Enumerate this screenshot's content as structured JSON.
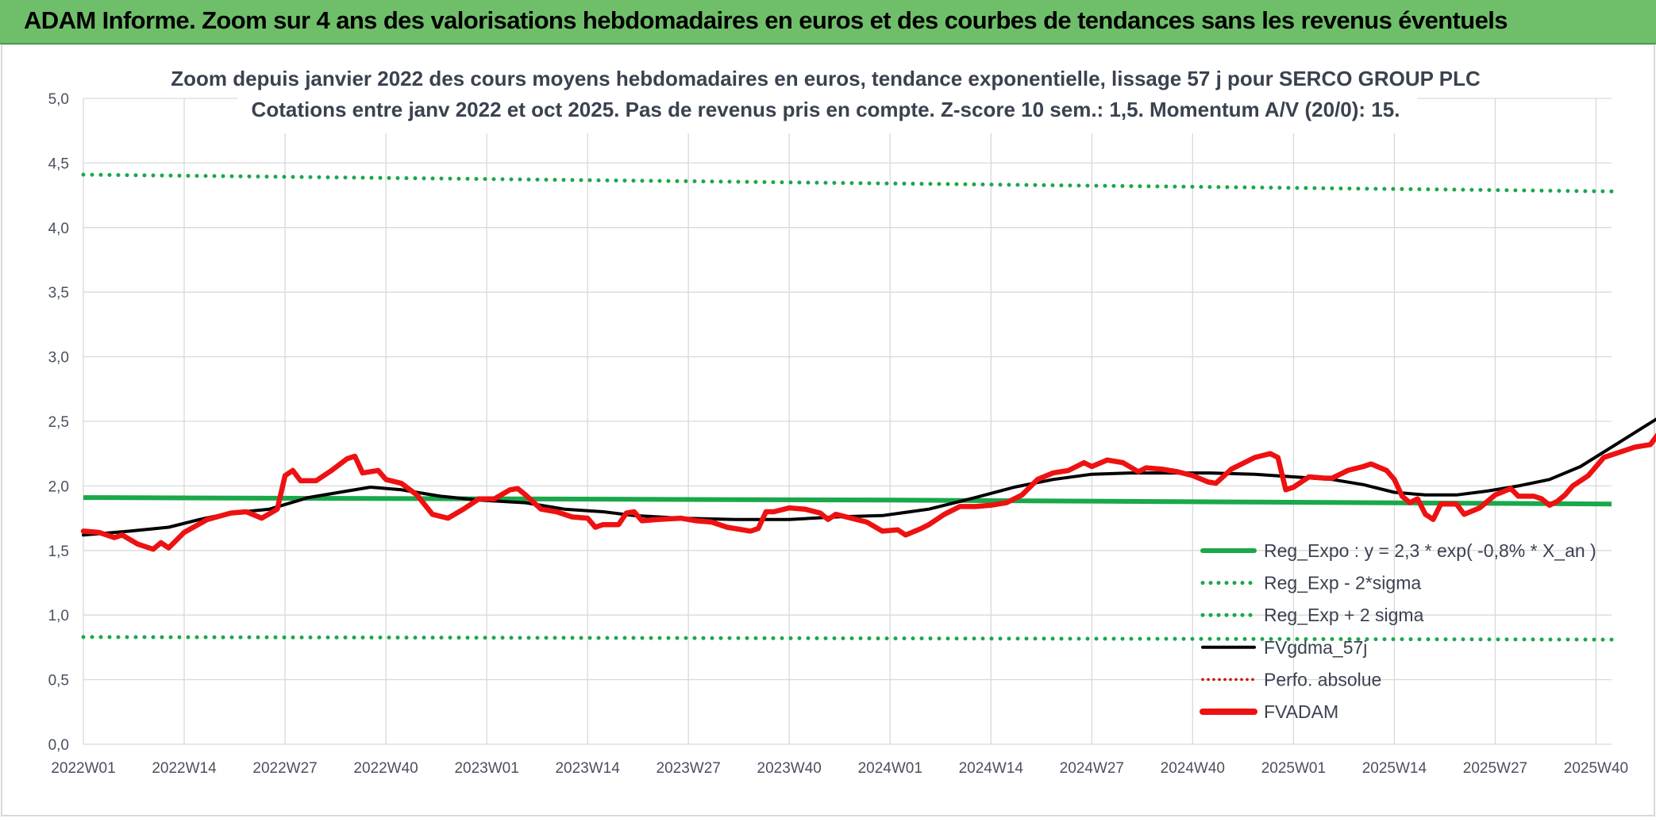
{
  "header": {
    "title": "ADAM Informe. Zoom sur 4 ans des valorisations hebdomadaires en euros et des courbes de tendances sans les revenus éventuels"
  },
  "colors": {
    "header_bg": "#6fbf6a",
    "reg_green": "#1aa84a",
    "fvgdma_black": "#000000",
    "fvadam_red": "#ee1111",
    "perfo_red": "#cc0000",
    "grid": "#d9d9d9"
  },
  "chart_data": {
    "type": "line",
    "title": [
      "Zoom depuis janvier 2022 des cours moyens hebdomadaires en euros, tendance exponentielle, lissage 57 j pour SERCO GROUP PLC",
      "Cotations entre janv 2022 et oct 2025. Pas de revenus pris en compte. Z-score 10 sem.: 1,5. Momentum A/V (20/0): 15."
    ],
    "ylim": [
      0,
      5
    ],
    "ytick_labels": [
      "0,0",
      "0,5",
      "1,0",
      "1,5",
      "2,0",
      "2,5",
      "3,0",
      "3,5",
      "4,0",
      "4,5",
      "5,0"
    ],
    "x_start_week": 1,
    "x_end_week": 198,
    "xtick_labels": [
      "2022W01",
      "2022W14",
      "2022W27",
      "2022W40",
      "2023W01",
      "2023W14",
      "2023W27",
      "2023W40",
      "2024W01",
      "2024W14",
      "2024W27",
      "2024W40",
      "2025W01",
      "2025W14",
      "2025W27",
      "2025W40"
    ],
    "legend": [
      {
        "label": "Reg_Expo : y = 2,3 * exp( -0,8% *  X_an )",
        "style": "solid-green"
      },
      {
        "label": "Reg_Exp - 2*sigma",
        "style": "dotted-green"
      },
      {
        "label": "Reg_Exp + 2 sigma",
        "style": "dotted-green"
      },
      {
        "label": "FVgdma_57j",
        "style": "solid-black"
      },
      {
        "label": "Perfo. absolue",
        "style": "dotted-red"
      },
      {
        "label": "FVADAM",
        "style": "solid-red-thick"
      }
    ],
    "series": [
      {
        "name": "Reg_Expo",
        "points": [
          [
            1,
            1.91
          ],
          [
            105,
            1.89
          ],
          [
            198,
            1.86
          ]
        ]
      },
      {
        "name": "Reg_Exp - 2*sigma",
        "points": [
          [
            1,
            0.83
          ],
          [
            198,
            0.81
          ]
        ]
      },
      {
        "name": "Reg_Exp + 2 sigma",
        "points": [
          [
            1,
            4.41
          ],
          [
            198,
            4.28
          ]
        ]
      },
      {
        "name": "FVgdma_57j",
        "points": [
          [
            1,
            1.62
          ],
          [
            7,
            1.65
          ],
          [
            12,
            1.68
          ],
          [
            16,
            1.74
          ],
          [
            20,
            1.79
          ],
          [
            25,
            1.82
          ],
          [
            30,
            1.91
          ],
          [
            35,
            1.96
          ],
          [
            38,
            1.99
          ],
          [
            42,
            1.97
          ],
          [
            47,
            1.92
          ],
          [
            52,
            1.89
          ],
          [
            58,
            1.87
          ],
          [
            63,
            1.82
          ],
          [
            68,
            1.8
          ],
          [
            72,
            1.77
          ],
          [
            78,
            1.75
          ],
          [
            85,
            1.74
          ],
          [
            92,
            1.74
          ],
          [
            98,
            1.76
          ],
          [
            104,
            1.77
          ],
          [
            110,
            1.82
          ],
          [
            116,
            1.91
          ],
          [
            121,
            1.99
          ],
          [
            126,
            2.05
          ],
          [
            131,
            2.09
          ],
          [
            136,
            2.1
          ],
          [
            141,
            2.1
          ],
          [
            146,
            2.1
          ],
          [
            152,
            2.09
          ],
          [
            157,
            2.07
          ],
          [
            162,
            2.05
          ],
          [
            166,
            2.01
          ],
          [
            170,
            1.95
          ],
          [
            174,
            1.93
          ],
          [
            178,
            1.93
          ],
          [
            182,
            1.96
          ],
          [
            186,
            2.0
          ],
          [
            190,
            2.05
          ],
          [
            194,
            2.15
          ],
          [
            198,
            2.3
          ],
          [
            202,
            2.45
          ],
          [
            206,
            2.6
          ],
          [
            210,
            2.7
          ],
          [
            213,
            2.77
          ]
        ]
      },
      {
        "name": "FVADAM",
        "points": [
          [
            1,
            1.65
          ],
          [
            3,
            1.64
          ],
          [
            5,
            1.6
          ],
          [
            6,
            1.62
          ],
          [
            8,
            1.55
          ],
          [
            10,
            1.51
          ],
          [
            11,
            1.56
          ],
          [
            12,
            1.52
          ],
          [
            14,
            1.64
          ],
          [
            17,
            1.74
          ],
          [
            20,
            1.79
          ],
          [
            22,
            1.8
          ],
          [
            24,
            1.75
          ],
          [
            26,
            1.82
          ],
          [
            27,
            2.08
          ],
          [
            28,
            2.12
          ],
          [
            29,
            2.04
          ],
          [
            31,
            2.04
          ],
          [
            33,
            2.12
          ],
          [
            35,
            2.21
          ],
          [
            36,
            2.23
          ],
          [
            37,
            2.1
          ],
          [
            39,
            2.12
          ],
          [
            40,
            2.05
          ],
          [
            42,
            2.02
          ],
          [
            44,
            1.93
          ],
          [
            46,
            1.78
          ],
          [
            48,
            1.75
          ],
          [
            50,
            1.82
          ],
          [
            52,
            1.9
          ],
          [
            54,
            1.9
          ],
          [
            56,
            1.97
          ],
          [
            57,
            1.98
          ],
          [
            58,
            1.93
          ],
          [
            60,
            1.82
          ],
          [
            62,
            1.8
          ],
          [
            64,
            1.76
          ],
          [
            66,
            1.75
          ],
          [
            67,
            1.68
          ],
          [
            68,
            1.7
          ],
          [
            70,
            1.7
          ],
          [
            71,
            1.79
          ],
          [
            72,
            1.8
          ],
          [
            73,
            1.73
          ],
          [
            75,
            1.74
          ],
          [
            78,
            1.75
          ],
          [
            80,
            1.73
          ],
          [
            82,
            1.72
          ],
          [
            84,
            1.68
          ],
          [
            87,
            1.65
          ],
          [
            88,
            1.67
          ],
          [
            89,
            1.8
          ],
          [
            90,
            1.8
          ],
          [
            92,
            1.83
          ],
          [
            94,
            1.82
          ],
          [
            96,
            1.79
          ],
          [
            97,
            1.74
          ],
          [
            98,
            1.78
          ],
          [
            100,
            1.75
          ],
          [
            102,
            1.72
          ],
          [
            104,
            1.65
          ],
          [
            106,
            1.66
          ],
          [
            107,
            1.62
          ],
          [
            109,
            1.67
          ],
          [
            110,
            1.7
          ],
          [
            112,
            1.78
          ],
          [
            114,
            1.84
          ],
          [
            116,
            1.84
          ],
          [
            118,
            1.85
          ],
          [
            120,
            1.87
          ],
          [
            122,
            1.93
          ],
          [
            124,
            2.05
          ],
          [
            126,
            2.1
          ],
          [
            128,
            2.12
          ],
          [
            130,
            2.18
          ],
          [
            131,
            2.15
          ],
          [
            133,
            2.2
          ],
          [
            135,
            2.18
          ],
          [
            137,
            2.11
          ],
          [
            138,
            2.14
          ],
          [
            140,
            2.13
          ],
          [
            142,
            2.11
          ],
          [
            144,
            2.08
          ],
          [
            146,
            2.03
          ],
          [
            147,
            2.02
          ],
          [
            149,
            2.13
          ],
          [
            152,
            2.22
          ],
          [
            154,
            2.25
          ],
          [
            155,
            2.22
          ],
          [
            156,
            1.97
          ],
          [
            157,
            1.99
          ],
          [
            159,
            2.07
          ],
          [
            161,
            2.06
          ],
          [
            162,
            2.06
          ],
          [
            164,
            2.12
          ],
          [
            166,
            2.15
          ],
          [
            167,
            2.17
          ],
          [
            169,
            2.12
          ],
          [
            170,
            2.05
          ],
          [
            171,
            1.92
          ],
          [
            172,
            1.87
          ],
          [
            173,
            1.9
          ],
          [
            174,
            1.78
          ],
          [
            175,
            1.74
          ],
          [
            176,
            1.86
          ],
          [
            178,
            1.86
          ],
          [
            179,
            1.78
          ],
          [
            181,
            1.83
          ],
          [
            183,
            1.93
          ],
          [
            185,
            1.98
          ],
          [
            186,
            1.92
          ],
          [
            188,
            1.92
          ],
          [
            189,
            1.9
          ],
          [
            190,
            1.85
          ],
          [
            191,
            1.88
          ],
          [
            192,
            1.93
          ],
          [
            193,
            2.0
          ],
          [
            195,
            2.08
          ],
          [
            196,
            2.15
          ],
          [
            197,
            2.22
          ],
          [
            199,
            2.26
          ],
          [
            201,
            2.3
          ],
          [
            203,
            2.32
          ],
          [
            204,
            2.4
          ],
          [
            205,
            2.43
          ],
          [
            206,
            2.44
          ],
          [
            207,
            2.43
          ],
          [
            208,
            2.42
          ],
          [
            209,
            2.47
          ],
          [
            210,
            2.63
          ],
          [
            211,
            2.58
          ],
          [
            212,
            2.53
          ],
          [
            213,
            2.56
          ],
          [
            214,
            2.59
          ],
          [
            215,
            2.54
          ],
          [
            216,
            2.6
          ],
          [
            217,
            2.67
          ],
          [
            218,
            2.71
          ],
          [
            219,
            2.75
          ],
          [
            220,
            2.82
          ],
          [
            221,
            2.9
          ]
        ]
      }
    ]
  }
}
